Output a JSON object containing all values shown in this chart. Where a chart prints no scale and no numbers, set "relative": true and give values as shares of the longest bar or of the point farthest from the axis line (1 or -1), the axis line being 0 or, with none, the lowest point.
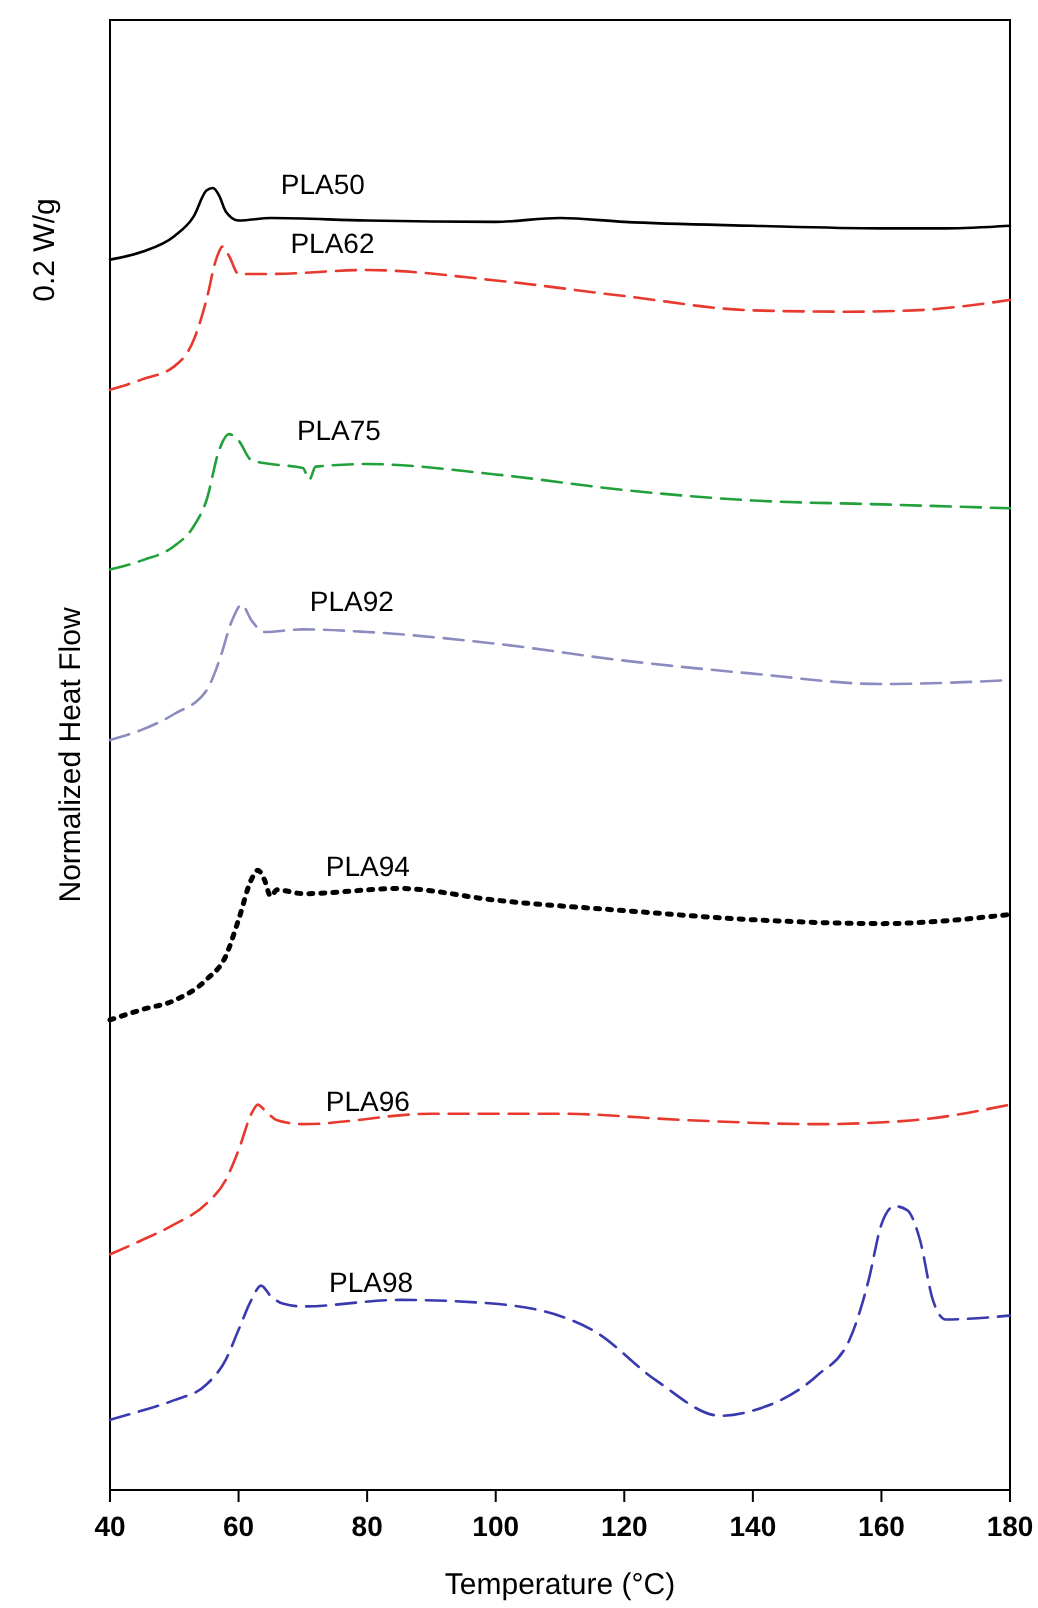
{
  "chart_data": {
    "type": "line",
    "relative": true,
    "xlabel": "Temperature (°C)",
    "ylabel": "Normalized Heat Flow",
    "annotations": [
      "0.2 W/g"
    ],
    "xlim": [
      40,
      180
    ],
    "xticks": [
      40,
      60,
      80,
      100,
      120,
      140,
      160,
      180
    ],
    "grid": false,
    "legend": false,
    "series": [
      {
        "name": "PLA50",
        "color": "#000000",
        "line_style": "solid",
        "x": [
          40,
          45,
          50,
          53,
          55,
          56,
          57,
          58,
          60,
          65,
          80,
          100,
          110,
          120,
          140,
          160,
          170,
          180
        ],
        "values": [
          0.945,
          0.951,
          0.963,
          0.978,
          0.998,
          1,
          0.994,
          0.982,
          0.975,
          0.977,
          0.975,
          0.974,
          0.977,
          0.974,
          0.971,
          0.969,
          0.969,
          0.971
        ]
      },
      {
        "name": "PLA62",
        "color": "#e8392f",
        "line_style": "dashed",
        "x": [
          40,
          45,
          50,
          53,
          55,
          56.5,
          57.5,
          58.5,
          60,
          65,
          80,
          100,
          120,
          140,
          155,
          165,
          180
        ],
        "values": [
          0.845,
          0.853,
          0.863,
          0.883,
          0.914,
          0.945,
          0.955,
          0.948,
          0.934,
          0.934,
          0.937,
          0.929,
          0.917,
          0.906,
          0.905,
          0.906,
          0.914
        ]
      },
      {
        "name": "PLA75",
        "color": "#22a03c",
        "line_style": "dashed",
        "x": [
          40,
          45,
          50,
          53,
          55,
          57,
          58.5,
          60,
          62,
          65,
          70,
          71,
          72,
          80,
          100,
          120,
          140,
          160,
          180
        ],
        "values": [
          0.707,
          0.714,
          0.725,
          0.74,
          0.76,
          0.799,
          0.811,
          0.806,
          0.791,
          0.788,
          0.785,
          0.776,
          0.786,
          0.788,
          0.78,
          0.768,
          0.76,
          0.757,
          0.754
        ]
      },
      {
        "name": "PLA92",
        "color": "#8c8cc0",
        "line_style": "dashed",
        "x": [
          40,
          45,
          50,
          55,
          57,
          59,
          60.5,
          62,
          64,
          70,
          80,
          100,
          120,
          140,
          160,
          180
        ],
        "values": [
          0.576,
          0.584,
          0.596,
          0.614,
          0.637,
          0.668,
          0.68,
          0.668,
          0.659,
          0.661,
          0.659,
          0.65,
          0.637,
          0.627,
          0.619,
          0.622
        ]
      },
      {
        "name": "PLA94",
        "color": "#000000",
        "line_style": "dotted",
        "x": [
          40,
          45,
          50,
          55,
          58,
          60,
          62,
          63,
          64,
          65,
          66,
          70,
          85,
          100,
          120,
          140,
          160,
          180
        ],
        "values": [
          0.361,
          0.369,
          0.376,
          0.392,
          0.41,
          0.438,
          0.469,
          0.476,
          0.469,
          0.456,
          0.461,
          0.458,
          0.462,
          0.453,
          0.445,
          0.438,
          0.435,
          0.442
        ]
      },
      {
        "name": "PLA96",
        "color": "#e8392f",
        "line_style": "dashed",
        "x": [
          40,
          45,
          50,
          55,
          58,
          60,
          62,
          63,
          64,
          66,
          70,
          90,
          110,
          130,
          150,
          165,
          180
        ],
        "values": [
          0.181,
          0.192,
          0.204,
          0.22,
          0.238,
          0.261,
          0.289,
          0.296,
          0.292,
          0.284,
          0.281,
          0.289,
          0.289,
          0.284,
          0.281,
          0.284,
          0.296
        ]
      },
      {
        "name": "PLA98",
        "color": "#3a3ab0",
        "line_style": "dashed",
        "x": [
          40,
          45,
          50,
          55,
          58,
          60,
          62,
          63.5,
          65,
          67,
          70,
          85,
          100,
          115,
          125,
          135,
          140,
          150,
          155,
          158,
          160,
          162,
          164,
          166,
          168,
          170,
          180
        ],
        "values": [
          0.054,
          0.061,
          0.069,
          0.081,
          0.1,
          0.123,
          0.146,
          0.157,
          0.149,
          0.143,
          0.141,
          0.146,
          0.143,
          0.123,
          0.084,
          0.057,
          0.061,
          0.088,
          0.115,
          0.161,
          0.204,
          0.218,
          0.215,
          0.192,
          0.146,
          0.131,
          0.134
        ]
      }
    ]
  }
}
